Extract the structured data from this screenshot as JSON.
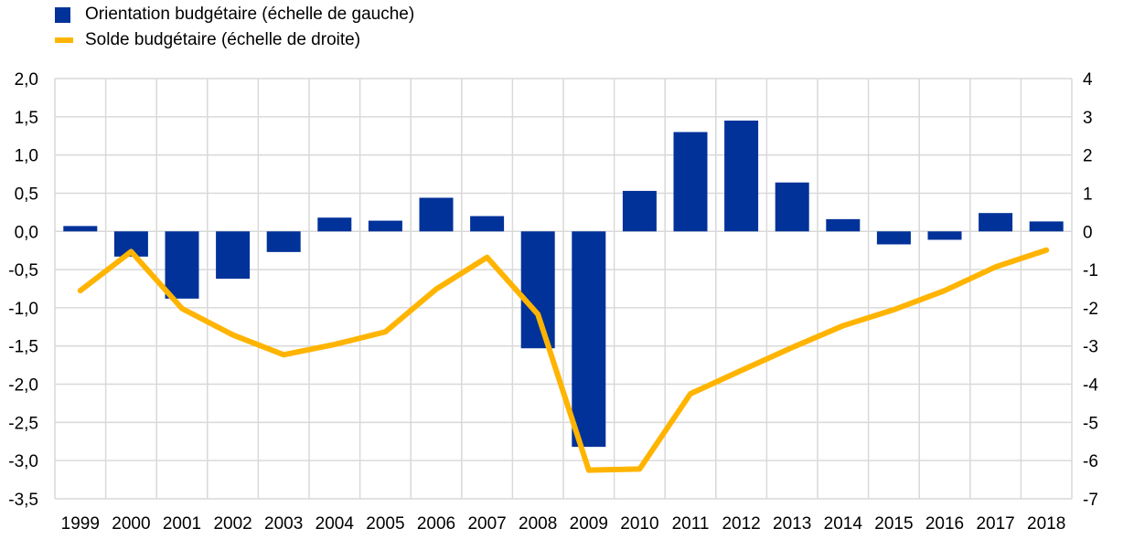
{
  "chart_data": {
    "type": "bar+line",
    "categories": [
      "1999",
      "2000",
      "2001",
      "2002",
      "2003",
      "2004",
      "2005",
      "2006",
      "2007",
      "2008",
      "2009",
      "2010",
      "2011",
      "2012",
      "2013",
      "2014",
      "2015",
      "2016",
      "2017",
      "2018"
    ],
    "series": [
      {
        "name": "Orientation budgétaire (échelle de gauche)",
        "type": "bar",
        "axis": "left",
        "color": "#003299",
        "values": [
          0.07,
          -0.33,
          -0.88,
          -0.62,
          -0.27,
          0.18,
          0.14,
          0.44,
          0.2,
          -1.53,
          -2.82,
          0.53,
          1.3,
          1.45,
          0.64,
          0.16,
          -0.17,
          -0.11,
          0.24,
          0.13
        ]
      },
      {
        "name": "Solde budgétaire (échelle de droite)",
        "type": "line",
        "axis": "right",
        "color": "#FFB400",
        "values": [
          -1.55,
          -0.53,
          -2.02,
          -2.71,
          -3.23,
          -2.96,
          -2.63,
          -1.51,
          -0.68,
          -2.17,
          -6.25,
          -6.22,
          -4.25,
          -3.64,
          -3.04,
          -2.47,
          -2.05,
          -1.55,
          -0.93,
          -0.49
        ]
      }
    ],
    "y_left": {
      "range": [
        -3.5,
        2.0
      ],
      "ticks": [
        "2,0",
        "1,5",
        "1,0",
        "0,5",
        "0,0",
        "-0,5",
        "-1,0",
        "-1,5",
        "-2,0",
        "-2,5",
        "-3,0",
        "-3,5"
      ]
    },
    "y_right": {
      "range": [
        -7,
        4
      ],
      "ticks": [
        "4",
        "3",
        "2",
        "1",
        "0",
        "-1",
        "-2",
        "-3",
        "-4",
        "-5",
        "-6",
        "-7"
      ]
    },
    "grid": true,
    "legend_position": "top-left"
  }
}
